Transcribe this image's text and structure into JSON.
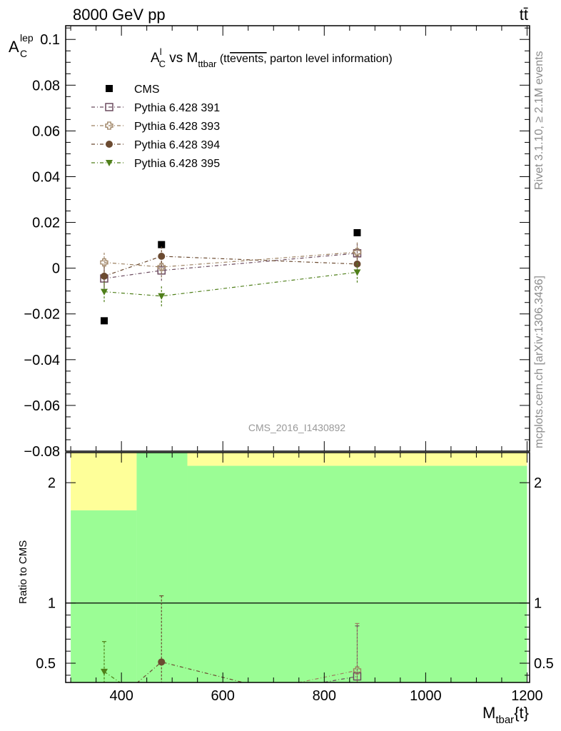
{
  "header": {
    "energy": "8000 GeV pp",
    "process": "tt̄"
  },
  "side": {
    "rivet": "Rivet 3.1.10, ≥ 2.1M events",
    "mcplots": "mcplots.cern.ch [arXiv:1306.3436]"
  },
  "chart_data": [
    {
      "type": "scatter",
      "title": {
        "a": "A",
        "a_sup": "l",
        "a_sub": "C",
        "vs": " vs M",
        "m_sub": "ttbar",
        "paren_open": " (tt",
        "overlined": "events,",
        "rest": " parton level information)"
      },
      "watermark": "CMS_2016_I1430892",
      "ylabel": {
        "a": "A",
        "sub": "C",
        "sup": "lep"
      },
      "xlim": [
        290,
        1205
      ],
      "ylim": [
        -0.08,
        0.106
      ],
      "y_ticks": [
        -0.08,
        -0.06,
        -0.04,
        -0.02,
        0,
        0.02,
        0.04,
        0.06,
        0.08,
        0.1
      ],
      "y_tick_labels": [
        "−0.08",
        "−0.06",
        "−0.04",
        "−0.02",
        "0",
        "0.02",
        "0.04",
        "0.06",
        "0.08",
        "0.1"
      ],
      "legend_position": "top-left",
      "series": [
        {
          "name": "CMS",
          "marker": "filled-square",
          "color": "#000000",
          "line": false,
          "x": [
            366,
            479,
            865
          ],
          "y": [
            -0.023,
            0.0103,
            0.0155
          ],
          "err": [
            0.0,
            0.0,
            0.0
          ]
        },
        {
          "name": "Pythia 6.428 391",
          "marker": "open-square",
          "color": "#6b4a5e",
          "line": true,
          "x": [
            366,
            479,
            865
          ],
          "y": [
            -0.0045,
            -0.001,
            0.0065
          ],
          "err": [
            0.0045,
            0.0045,
            0.0045
          ]
        },
        {
          "name": "Pythia 6.428 393",
          "marker": "open-cross",
          "color": "#9c8060",
          "line": true,
          "x": [
            366,
            479,
            865
          ],
          "y": [
            0.0025,
            0.0005,
            0.007
          ],
          "err": [
            0.0045,
            0.0045,
            0.0045
          ]
        },
        {
          "name": "Pythia 6.428 394",
          "marker": "filled-circle",
          "color": "#6b4a30",
          "line": true,
          "x": [
            366,
            479,
            865
          ],
          "y": [
            -0.0035,
            0.0052,
            0.0018
          ],
          "err": [
            0.0045,
            0.0045,
            0.0045
          ]
        },
        {
          "name": "Pythia 6.428 395",
          "marker": "filled-triangle-down",
          "color": "#4f7f1a",
          "line": true,
          "x": [
            366,
            479,
            865
          ],
          "y": [
            -0.0103,
            -0.0122,
            -0.0018
          ],
          "err": [
            0.0045,
            0.0045,
            0.0045
          ]
        }
      ]
    },
    {
      "type": "scatter",
      "ylabel": "Ratio to CMS",
      "xlabel": {
        "a": "M",
        "sub": "tbar",
        "rest": "{t}"
      },
      "xlim": [
        290,
        1205
      ],
      "ylim": [
        0.34,
        2.25
      ],
      "x_ticks": [
        400,
        600,
        800,
        1000,
        1200
      ],
      "x_tick_labels": [
        "400",
        "600",
        "800",
        "1000",
        "1200"
      ],
      "y_ticks": [
        0.5,
        1,
        2
      ],
      "y_tick_labels": [
        "0.5",
        "1",
        "2"
      ],
      "reference_line": 1,
      "bands": [
        {
          "x0": 300,
          "x1": 430,
          "green_lo": 0.34,
          "green_hi": 1.77,
          "yellow_hi": 2.25
        },
        {
          "x0": 430,
          "x1": 530,
          "green_lo": 0.34,
          "green_hi": 2.25,
          "yellow_hi": 2.25
        },
        {
          "x0": 530,
          "x1": 1200,
          "green_lo": 0.34,
          "green_hi": 2.14,
          "yellow_hi": 2.25
        }
      ],
      "band_colors": {
        "green": "#9bfd95",
        "yellow": "#feff99"
      },
      "series": [
        {
          "name": "Pythia 6.428 391",
          "x": [
            366,
            479,
            865
          ],
          "y": [
            null,
            null,
            0.39
          ],
          "err_hi": [
            null,
            null,
            0.81
          ]
        },
        {
          "name": "Pythia 6.428 393",
          "x": [
            366,
            479,
            865
          ],
          "y": [
            null,
            null,
            0.44
          ],
          "err_hi": [
            null,
            null,
            0.83
          ]
        },
        {
          "name": "Pythia 6.428 394",
          "x": [
            366,
            479,
            865
          ],
          "y": [
            null,
            0.51,
            null
          ],
          "err_hi": [
            null,
            1.06,
            null
          ]
        },
        {
          "name": "Pythia 6.428 395",
          "x": [
            366,
            479,
            865
          ],
          "y": [
            0.43,
            null,
            null
          ],
          "err_hi": [
            0.68,
            null,
            null
          ]
        }
      ]
    }
  ]
}
